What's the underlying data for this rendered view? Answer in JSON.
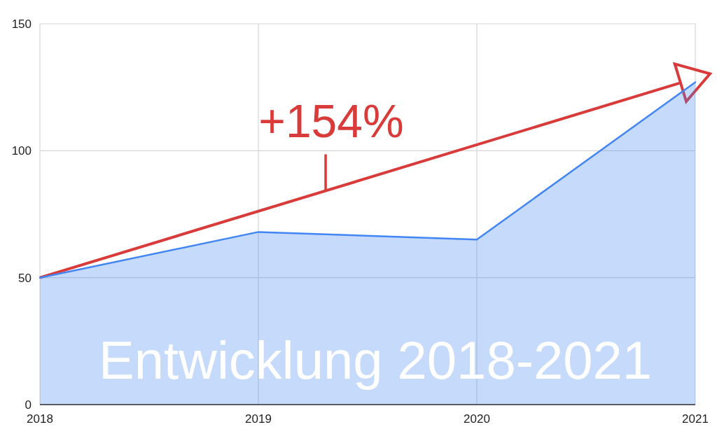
{
  "chart_data": {
    "type": "area",
    "title": "Entwicklung 2018-2021",
    "x": [
      2018,
      2019,
      2020,
      2021
    ],
    "series": [
      {
        "color": "#4285f4",
        "values": [
          50,
          68,
          65,
          127
        ]
      }
    ],
    "xlim": [
      2018,
      2021
    ],
    "xticks": [
      2018,
      2019,
      2020,
      2021
    ],
    "ylim": [
      0,
      150
    ],
    "yticks": [
      0,
      50,
      100,
      150
    ],
    "grid": true,
    "annotations": [
      "+154%"
    ]
  }
}
